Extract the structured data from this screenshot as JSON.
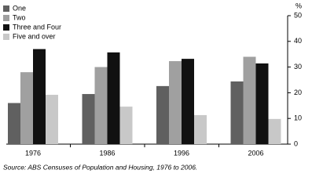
{
  "chart_data": {
    "type": "bar",
    "categories": [
      "1976",
      "1986",
      "1996",
      "2006"
    ],
    "series": [
      {
        "name": "One",
        "color": "#606060",
        "values": [
          16,
          19.5,
          22.6,
          24.4
        ]
      },
      {
        "name": "Two",
        "color": "#a0a0a0",
        "values": [
          28,
          30,
          32.3,
          34
        ]
      },
      {
        "name": "Three and Four",
        "color": "#111111",
        "values": [
          37,
          35.7,
          33.2,
          31.4
        ]
      },
      {
        "name": "Five and over",
        "color": "#c8c8c8",
        "values": [
          19.2,
          14.6,
          11.3,
          9.8
        ]
      }
    ],
    "y_label": "%",
    "ylim": [
      0,
      50
    ],
    "yticks": [
      0,
      10,
      20,
      30,
      40,
      50
    ],
    "source": "Source: ABS Censuses of Population and Housing, 1976 to 2006."
  }
}
